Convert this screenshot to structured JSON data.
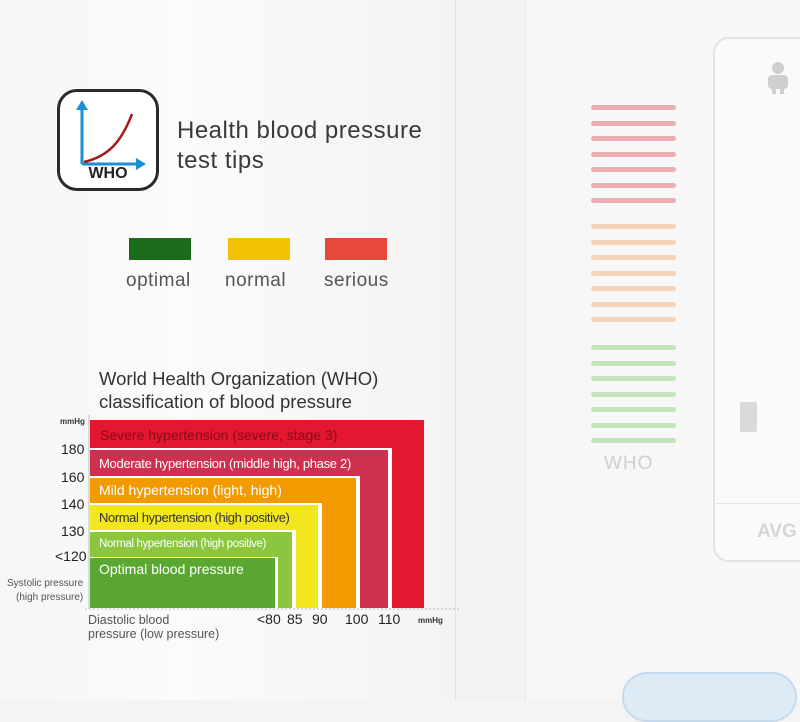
{
  "icon": {
    "text": "WHO"
  },
  "header": {
    "title": "Health blood pressure test tips"
  },
  "legend": [
    {
      "label": "optimal",
      "color": "#1a6b1a"
    },
    {
      "label": "normal",
      "color": "#f2c200"
    },
    {
      "label": "serious",
      "color": "#e8483a"
    }
  ],
  "chart": {
    "title": "World Health Organization (WHO) classification of blood pressure",
    "y_unit": "mmHg",
    "x_unit": "mmHg",
    "y_ticks": [
      "180",
      "160",
      "140",
      "130",
      "<120"
    ],
    "x_ticks": [
      "<80",
      "85",
      "90",
      "100",
      "110"
    ],
    "y_axis_label": [
      "Systolic pressure",
      "(high pressure)"
    ],
    "x_axis_label": [
      "Diastolic blood",
      "pressure (low pressure)"
    ],
    "bands": [
      {
        "label": "Severe hypertension (severe, stage 3)",
        "color": "#e3172f",
        "text_color": "#8a0a18"
      },
      {
        "label": "Moderate hypertension (middle high, phase 2)",
        "color": "#d03050",
        "text_color": "#ffffff"
      },
      {
        "label": "Mild hypertension (light, high)",
        "color": "#f39a00",
        "text_color": "#ffffff"
      },
      {
        "label": "Normal hypertension (high positive)",
        "color": "#f2e61e",
        "text_color": "#333333"
      },
      {
        "label": "Normal hypertension (high positive)",
        "color": "#8cc63f",
        "text_color": "#ffffff"
      },
      {
        "label": "Optimal blood pressure",
        "color": "#5aa832",
        "text_color": "#ffffff"
      }
    ]
  },
  "device": {
    "who_label": "WHO",
    "avg_label": "AVG",
    "led_colors": {
      "top": "#ecaeb0",
      "middle": "#f4d3b9",
      "bottom": "#c4e4bd"
    }
  }
}
